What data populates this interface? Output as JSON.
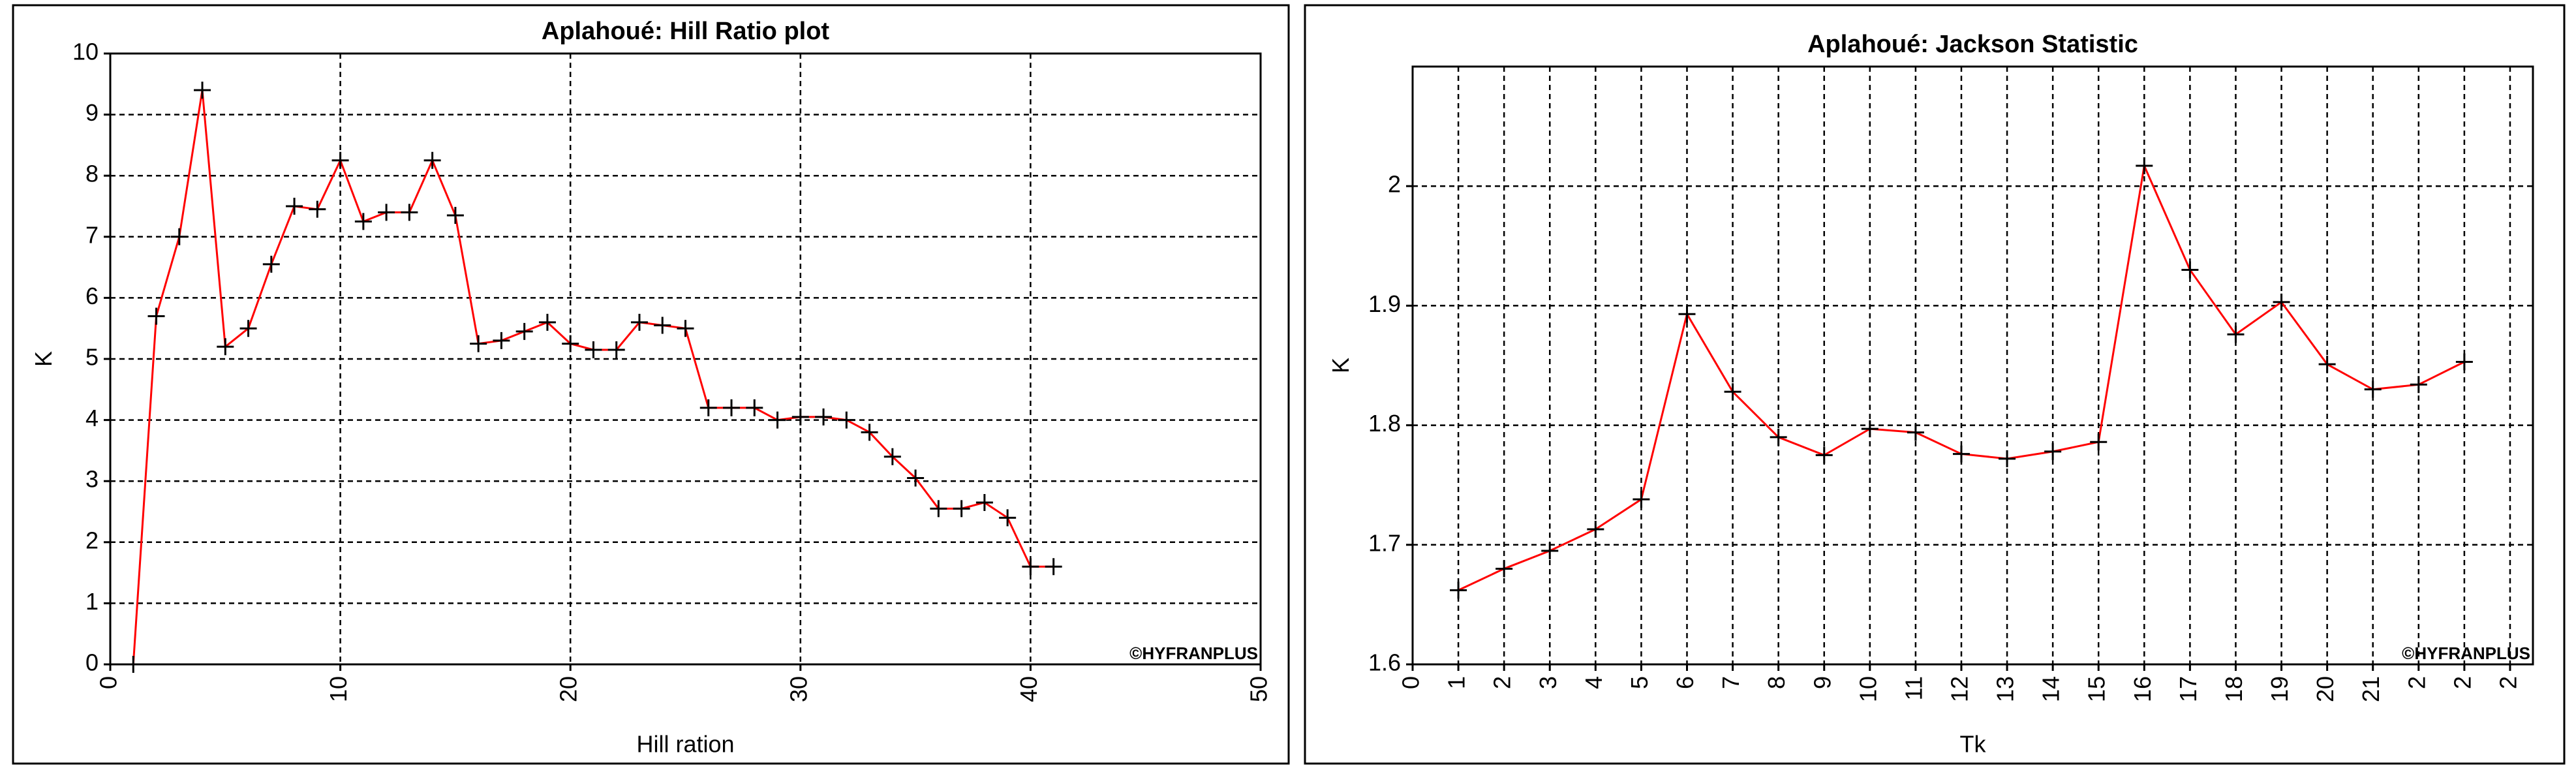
{
  "chart_data": [
    {
      "type": "line",
      "title": "Aplahoué: Hill Ratio plot",
      "x_label": "Hill ration",
      "y_label": "K",
      "annotation": "©HYFRANPLUS",
      "x": [
        1,
        2,
        3,
        4,
        5,
        6,
        7,
        8,
        9,
        10,
        11,
        12,
        13,
        14,
        15,
        16,
        17,
        18,
        19,
        20,
        21,
        22,
        23,
        24,
        25,
        26,
        27,
        28,
        29,
        30,
        31,
        32,
        33,
        34,
        35,
        36,
        37,
        38,
        39,
        40,
        41
      ],
      "series": [
        {
          "name": "K",
          "color": "#ff0000",
          "marker_color": "#000000",
          "values": [
            0,
            5.7,
            7.0,
            9.4,
            5.2,
            5.5,
            6.55,
            7.5,
            7.45,
            8.25,
            7.25,
            7.4,
            7.4,
            8.25,
            7.35,
            5.25,
            5.3,
            5.45,
            5.6,
            5.25,
            5.15,
            5.15,
            5.6,
            5.55,
            5.5,
            4.2,
            4.2,
            4.2,
            4.0,
            4.05,
            4.05,
            4.0,
            3.8,
            3.4,
            3.05,
            2.55,
            2.55,
            2.65,
            2.4,
            1.6,
            1.6
          ]
        }
      ],
      "xlim": [
        0,
        50
      ],
      "xticks": [
        0,
        10,
        20,
        30,
        40,
        50
      ],
      "ylim": [
        0,
        10
      ],
      "yticks": [
        0,
        1,
        2,
        3,
        4,
        5,
        6,
        7,
        8,
        9,
        10
      ],
      "xgrid": [
        10,
        20,
        30,
        40
      ],
      "ygrid": [
        1,
        2,
        3,
        4,
        5,
        6,
        7,
        8,
        9
      ]
    },
    {
      "type": "line",
      "title": "Aplahoué: Jackson Statistic",
      "x_label": "Tk",
      "y_label": "K",
      "annotation": "©HYFRANPLUS",
      "x": [
        1,
        2,
        3,
        4,
        5,
        6,
        7,
        8,
        9,
        10,
        11,
        12,
        13,
        14,
        15,
        16,
        17,
        18,
        19,
        20,
        21,
        22,
        23
      ],
      "series": [
        {
          "name": "K",
          "color": "#ff0000",
          "marker_color": "#000000",
          "values": [
            1.662,
            1.68,
            1.695,
            1.713,
            1.738,
            1.893,
            1.828,
            1.79,
            1.775,
            1.797,
            1.794,
            1.776,
            1.772,
            1.778,
            1.786,
            2.017,
            1.93,
            1.876,
            1.903,
            1.851,
            1.83,
            1.834,
            1.853
          ]
        }
      ],
      "xlim": [
        0,
        24.5
      ],
      "xticks": [
        0,
        1,
        2,
        3,
        4,
        5,
        6,
        7,
        8,
        9,
        10,
        11,
        12,
        13,
        14,
        15,
        16,
        17,
        18,
        19,
        20,
        21,
        {
          "value": 22,
          "label": "2"
        },
        {
          "value": 23,
          "label": "2"
        },
        {
          "value": 24,
          "label": "2"
        }
      ],
      "ylim": [
        1.6,
        2.1
      ],
      "yticks": [
        1.6,
        1.7,
        1.8,
        1.9,
        2
      ],
      "xgrid": [
        1,
        2,
        3,
        4,
        5,
        6,
        7,
        8,
        9,
        10,
        11,
        12,
        13,
        14,
        15,
        16,
        17,
        18,
        19,
        20,
        21,
        22,
        23,
        24
      ],
      "ygrid": [
        1.7,
        1.8,
        1.9,
        2
      ]
    }
  ]
}
